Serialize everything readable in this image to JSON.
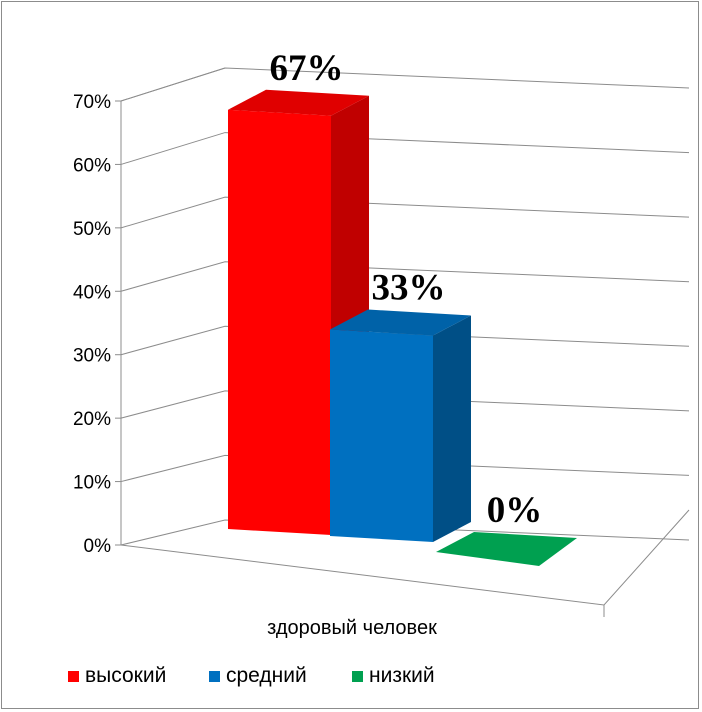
{
  "chart_data": {
    "type": "bar",
    "style": "3d-clustered-column",
    "categories": [
      "здоровый человек"
    ],
    "series": [
      {
        "name": "высокий",
        "values": [
          67
        ],
        "label": "67%",
        "color": "#ff0000",
        "side": "#c00000",
        "top": "#e00000"
      },
      {
        "name": "средний",
        "values": [
          33
        ],
        "label": "33%",
        "color": "#0070c0",
        "side": "#004f86",
        "top": "#0062a8"
      },
      {
        "name": "низкий",
        "values": [
          0
        ],
        "label": "0%",
        "color": "#00a050",
        "side": "#007a3d",
        "top": "#00a050"
      }
    ],
    "y_ticks": [
      "0%",
      "10%",
      "20%",
      "30%",
      "40%",
      "50%",
      "60%",
      "70%"
    ],
    "ylim": [
      0,
      70
    ],
    "grid": true,
    "legend_position": "bottom-left",
    "colors": {
      "gridline": "#8c8c8c",
      "border": "#8c8c8c"
    }
  }
}
